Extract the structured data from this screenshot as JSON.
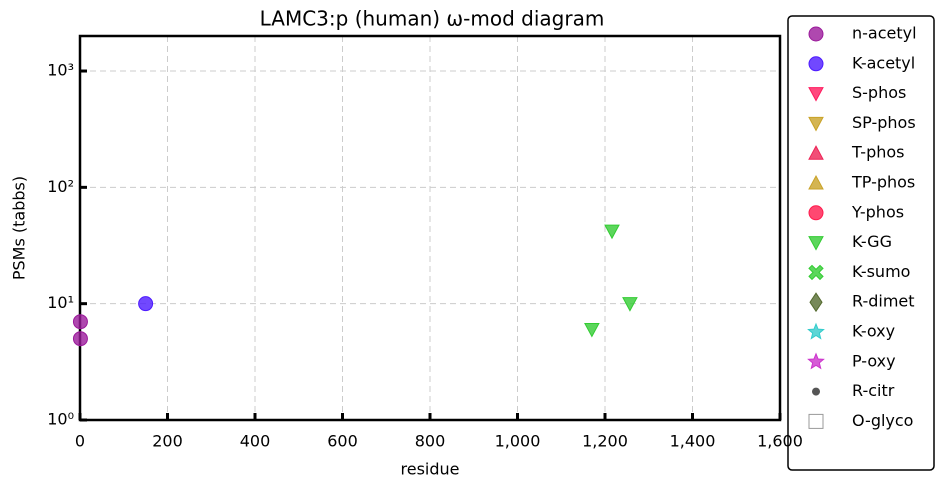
{
  "chart_data": {
    "type": "scatter",
    "title": "LAMC3:p (human) ω-mod diagram",
    "xlabel": "residue",
    "ylabel": "PSMs (tabbs)",
    "xlim": [
      0,
      1600
    ],
    "ylim": [
      1,
      2000
    ],
    "ylog": true,
    "grid": true,
    "legend": "outside right",
    "xticks": [
      0,
      200,
      400,
      600,
      800,
      {
        "value": 1000,
        "label": "1,000"
      },
      {
        "value": 1200,
        "label": "1,200"
      },
      {
        "value": 1400,
        "label": "1,400"
      },
      {
        "value": 1600,
        "label": "1,600"
      }
    ],
    "yticks": [
      {
        "value": 1,
        "label": "10⁰"
      },
      {
        "value": 10,
        "label": "10¹"
      },
      {
        "value": 100,
        "label": "10²"
      },
      {
        "value": 1000,
        "label": "10³"
      }
    ],
    "series": [
      {
        "name": "n-acetyl",
        "color": "#9b1a9b",
        "marker": "circle",
        "x": [
          1,
          1
        ],
        "values": [
          7,
          5
        ]
      },
      {
        "name": "K-acetyl",
        "color": "#4d1aff",
        "marker": "circle",
        "x": [
          150
        ],
        "values": [
          10
        ]
      },
      {
        "name": "S-phos",
        "color": "#ff1a5e",
        "marker": "triangle-down",
        "x": [],
        "values": []
      },
      {
        "name": "SP-phos",
        "color": "#c9a227",
        "marker": "triangle-down",
        "x": [],
        "values": []
      },
      {
        "name": "T-phos",
        "color": "#ee2255",
        "marker": "triangle-up",
        "x": [],
        "values": []
      },
      {
        "name": "TP-phos",
        "color": "#c9a227",
        "marker": "triangle-up",
        "x": [],
        "values": []
      },
      {
        "name": "Y-phos",
        "color": "#ff1a4d",
        "marker": "circle",
        "x": [],
        "values": []
      },
      {
        "name": "K-GG",
        "color": "#33cc33",
        "marker": "triangle-down",
        "x": [
          1216,
          1257,
          1170
        ],
        "values": [
          42,
          10,
          6
        ]
      },
      {
        "name": "K-sumo",
        "color": "#33cc33",
        "marker": "x",
        "x": [],
        "values": []
      },
      {
        "name": "R-dimet",
        "color": "#556b2f",
        "marker": "diamond",
        "x": [],
        "values": []
      },
      {
        "name": "K-oxy",
        "color": "#33cccc",
        "marker": "star",
        "x": [],
        "values": []
      },
      {
        "name": "P-oxy",
        "color": "#cc33cc",
        "marker": "star",
        "x": [],
        "values": []
      },
      {
        "name": "R-citr",
        "color": "#555555",
        "marker": "dot",
        "x": [],
        "values": []
      },
      {
        "name": "O-glyco",
        "color": "#999999",
        "marker": "square",
        "x": [],
        "values": []
      }
    ]
  }
}
